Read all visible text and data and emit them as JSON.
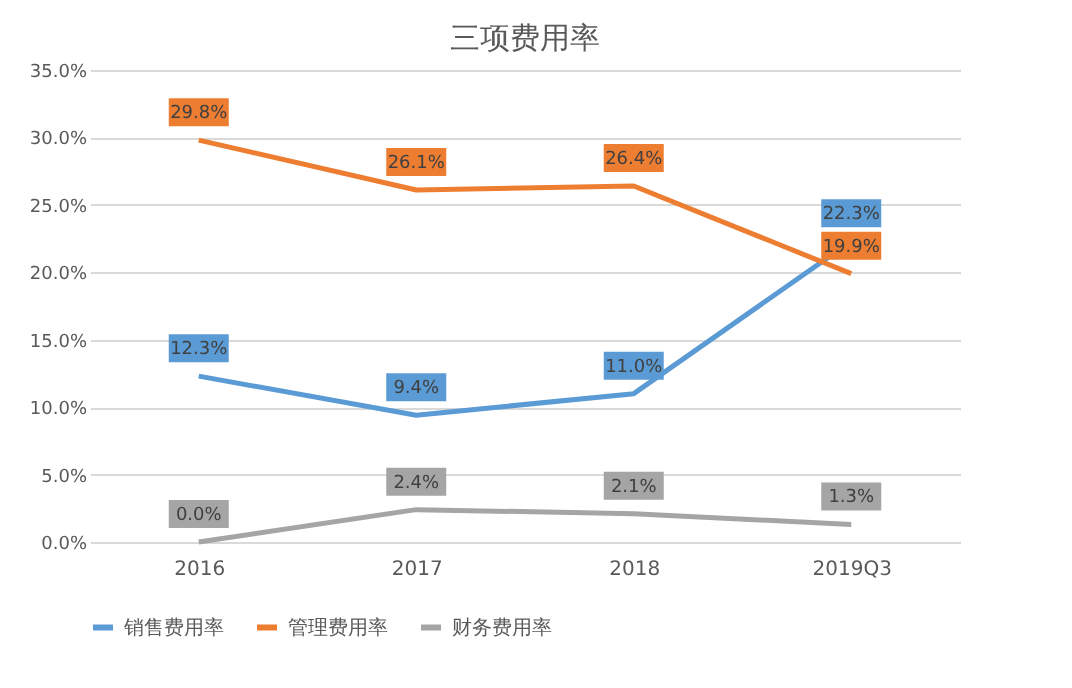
{
  "chart_data": {
    "type": "line",
    "title": "三项费用率",
    "categories": [
      "2016",
      "2017",
      "2018",
      "2019Q3"
    ],
    "series": [
      {
        "name": "销售费用率",
        "color": "#5b9bd5",
        "values": [
          12.3,
          9.4,
          11.0,
          22.3
        ],
        "value_labels": [
          "12.3%",
          "9.4%",
          "11.0%",
          "22.3%"
        ]
      },
      {
        "name": "管理费用率",
        "color": "#ed7d31",
        "values": [
          29.8,
          26.1,
          26.4,
          19.9
        ],
        "value_labels": [
          "29.8%",
          "26.1%",
          "26.4%",
          "19.9%"
        ]
      },
      {
        "name": "财务费用率",
        "color": "#a5a5a5",
        "values": [
          0.0,
          2.4,
          2.1,
          1.3
        ],
        "value_labels": [
          "0.0%",
          "2.4%",
          "2.1%",
          "1.3%"
        ]
      }
    ],
    "ylim": [
      0,
      35
    ],
    "yticks": [
      {
        "value": 0,
        "label": "0.0%"
      },
      {
        "value": 5,
        "label": "5.0%"
      },
      {
        "value": 10,
        "label": "10.0%"
      },
      {
        "value": 15,
        "label": "15.0%"
      },
      {
        "value": 20,
        "label": "20.0%"
      },
      {
        "value": 25,
        "label": "25.0%"
      },
      {
        "value": 30,
        "label": "30.0%"
      },
      {
        "value": 35,
        "label": "35.0%"
      }
    ],
    "grid": "y",
    "legend": "bottom",
    "marker": "none",
    "line_style": "solid"
  }
}
